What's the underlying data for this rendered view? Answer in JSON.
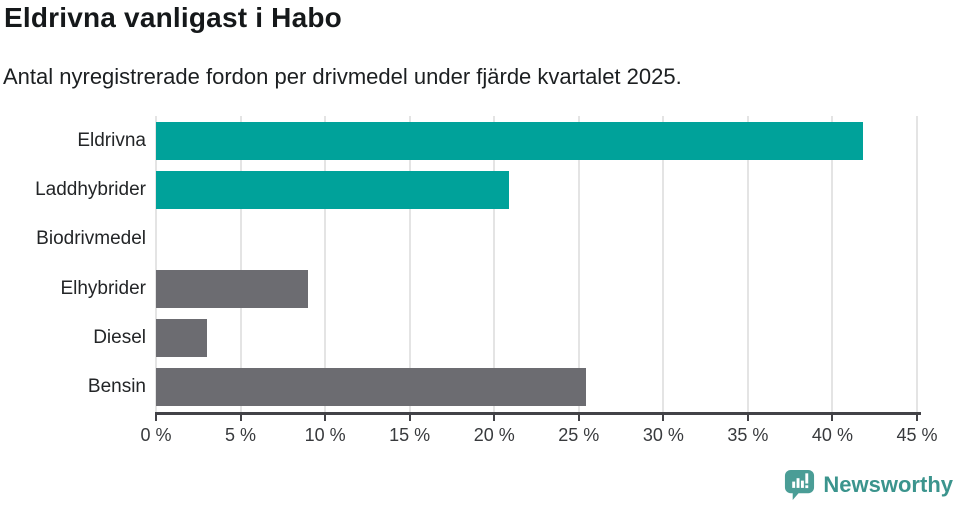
{
  "header": {
    "title": "Eldrivna vanligast i Habo",
    "subtitle": "Antal nyregistrerade fordon per drivmedel under fjärde kvartalet 2025."
  },
  "chart_data": {
    "type": "bar",
    "orientation": "horizontal",
    "title": "Eldrivna vanligast i Habo",
    "subtitle": "Antal nyregistrerade fordon per drivmedel under fjärde kvartalet 2025.",
    "categories": [
      "Eldrivna",
      "Laddhybrider",
      "Biodrivmedel",
      "Elhybrider",
      "Diesel",
      "Bensin"
    ],
    "values": [
      41.8,
      20.9,
      0,
      9.0,
      3.0,
      25.4
    ],
    "unit": "%",
    "xlim": [
      0,
      45
    ],
    "x_tick_values": [
      0,
      5,
      10,
      15,
      20,
      25,
      30,
      35,
      40,
      45
    ],
    "x_ticks": [
      "0 %",
      "5 %",
      "10 %",
      "15 %",
      "20 %",
      "25 %",
      "30 %",
      "35 %",
      "40 %",
      "45 %"
    ],
    "grid": true,
    "legend": false,
    "xlabel": "",
    "ylabel": "",
    "bar_colors": [
      "#00a29a",
      "#00a29a",
      "#6c6c71",
      "#6c6c71",
      "#6c6c71",
      "#6c6c71"
    ],
    "highlight_color": "#00a29a",
    "default_color": "#6c6c71"
  },
  "footer": {
    "brand": "Newsworthy",
    "logo_icon": "newsworthy-speech-bubble-bar-chart-icon",
    "logo_color": "#4a9d96",
    "text_color": "#3b948d"
  },
  "colors": {
    "background": "#ffffff",
    "title_text": "#15181a",
    "gridline": "#e4e4e4",
    "axis": "#424247",
    "tick_label": "#383a3d",
    "category_label": "#232527"
  }
}
